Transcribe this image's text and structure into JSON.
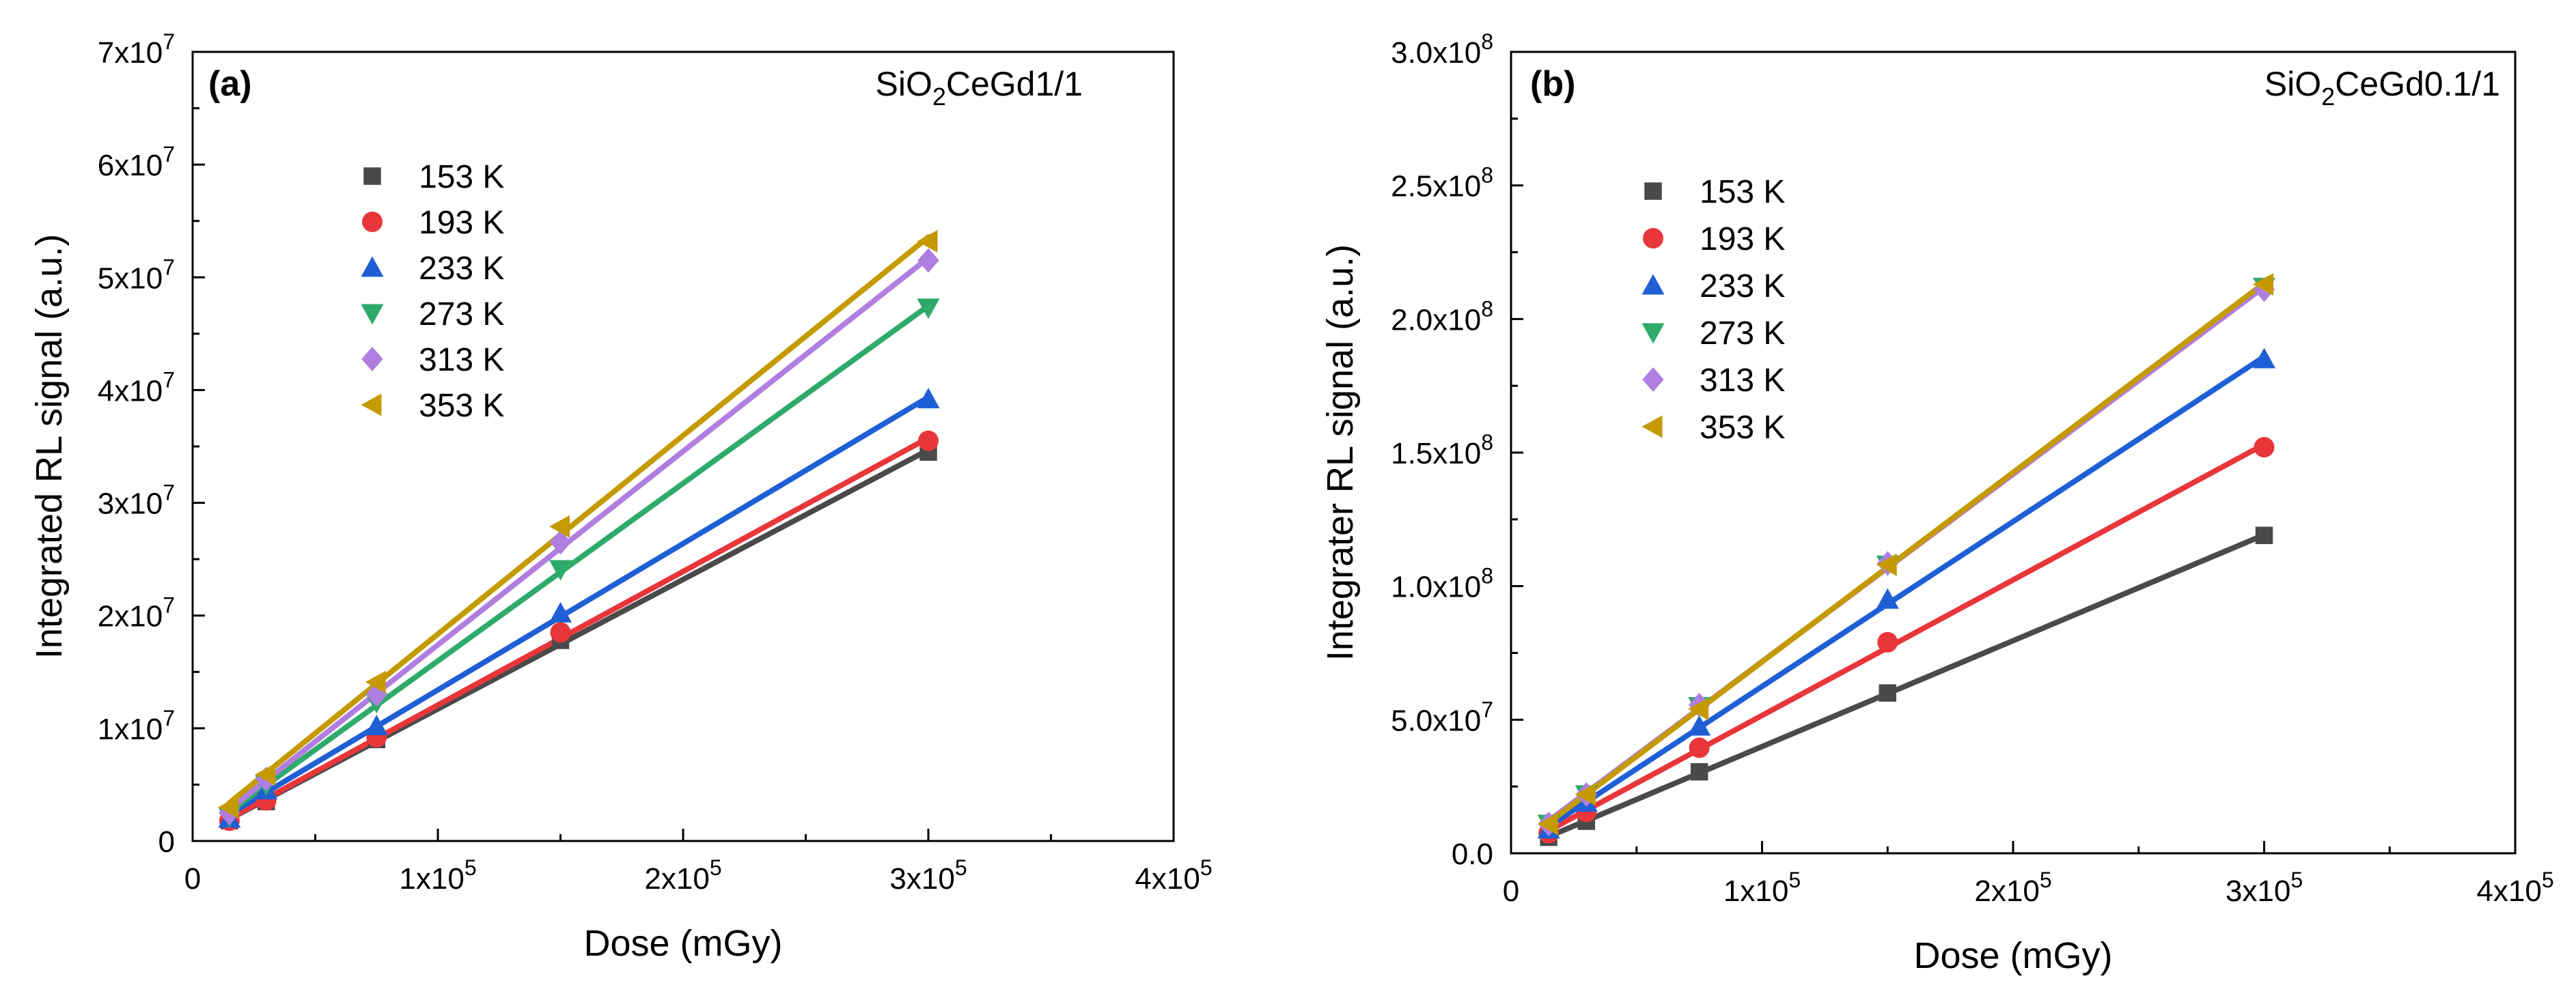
{
  "chart_data": [
    {
      "type": "scatter",
      "panel": "(a)",
      "sample": {
        "base": "SiO",
        "sub": "2",
        "rest": "CeGd1/1"
      },
      "xlabel": "Dose (mGy)",
      "ylabel": "Integrated RL signal (a.u.)",
      "xlim": [
        0,
        400000
      ],
      "ylim": [
        0,
        70000000
      ],
      "x_ticks": [
        {
          "value": 0,
          "text": "0",
          "exp": ""
        },
        {
          "value": 100000,
          "text": "1x10",
          "exp": "5"
        },
        {
          "value": 200000,
          "text": "2x10",
          "exp": "5"
        },
        {
          "value": 300000,
          "text": "3x10",
          "exp": "5"
        },
        {
          "value": 400000,
          "text": "4x10",
          "exp": "5"
        }
      ],
      "y_ticks": [
        {
          "value": 0,
          "text": "0",
          "exp": ""
        },
        {
          "value": 10000000,
          "text": "1x10",
          "exp": "7"
        },
        {
          "value": 20000000,
          "text": "2x10",
          "exp": "7"
        },
        {
          "value": 30000000,
          "text": "3x10",
          "exp": "7"
        },
        {
          "value": 40000000,
          "text": "4x10",
          "exp": "7"
        },
        {
          "value": 50000000,
          "text": "5x10",
          "exp": "7"
        },
        {
          "value": 60000000,
          "text": "6x10",
          "exp": "7"
        },
        {
          "value": 70000000,
          "text": "7x10",
          "exp": "7"
        }
      ],
      "x": [
        15000,
        30000,
        75000,
        150000,
        300000
      ],
      "legend_position": "upper-left",
      "series": [
        {
          "name": "153 K",
          "marker": "square",
          "color": "#4a4a4a",
          "values": [
            1800000,
            3500000,
            9000000,
            17800000,
            34500000
          ]
        },
        {
          "name": "193 K",
          "marker": "circle",
          "color": "#e8363a",
          "values": [
            1800000,
            3600000,
            9200000,
            18500000,
            35500000
          ]
        },
        {
          "name": "233 K",
          "marker": "triangle-up",
          "color": "#1f5fd6",
          "values": [
            2000000,
            4500000,
            10200000,
            20200000,
            39200000
          ]
        },
        {
          "name": "273 K",
          "marker": "triangle-down",
          "color": "#2eaa6a",
          "values": [
            2200000,
            5000000,
            12300000,
            24100000,
            47300000
          ]
        },
        {
          "name": "313 K",
          "marker": "diamond",
          "color": "#b07ee0",
          "values": [
            2500000,
            5500000,
            13000000,
            26500000,
            51500000
          ]
        },
        {
          "name": "353 K",
          "marker": "triangle-left",
          "color": "#c49a00",
          "values": [
            3000000,
            5900000,
            14100000,
            27900000,
            53200000
          ]
        }
      ]
    },
    {
      "type": "scatter",
      "panel": "(b)",
      "sample": {
        "base": "SiO",
        "sub": "2",
        "rest": "CeGd0.1/1"
      },
      "xlabel": "Dose (mGy)",
      "ylabel": "Integrater RL signal (a.u.)",
      "xlim": [
        0,
        400000
      ],
      "ylim": [
        0,
        300000000
      ],
      "x_ticks": [
        {
          "value": 0,
          "text": "0",
          "exp": ""
        },
        {
          "value": 100000,
          "text": "1x10",
          "exp": "5"
        },
        {
          "value": 200000,
          "text": "2x10",
          "exp": "5"
        },
        {
          "value": 300000,
          "text": "3x10",
          "exp": "5"
        },
        {
          "value": 400000,
          "text": "4x10",
          "exp": "5"
        }
      ],
      "y_ticks": [
        {
          "value": 0,
          "text": "0.0",
          "exp": ""
        },
        {
          "value": 50000000,
          "text": "5.0x10",
          "exp": "7"
        },
        {
          "value": 100000000,
          "text": "1.0x10",
          "exp": "8"
        },
        {
          "value": 150000000,
          "text": "1.5x10",
          "exp": "8"
        },
        {
          "value": 200000000,
          "text": "2.0x10",
          "exp": "8"
        },
        {
          "value": 250000000,
          "text": "2.5x10",
          "exp": "8"
        },
        {
          "value": 300000000,
          "text": "3.0x10",
          "exp": "8"
        }
      ],
      "x": [
        15000,
        30000,
        75000,
        150000,
        300000
      ],
      "legend_position": "upper-left",
      "series": [
        {
          "name": "153 K",
          "marker": "square",
          "color": "#4a4a4a",
          "values": [
            6000000,
            12000000,
            30500000,
            60000000,
            119000000
          ]
        },
        {
          "name": "193 K",
          "marker": "circle",
          "color": "#e8363a",
          "values": [
            7500000,
            15500000,
            39500000,
            79000000,
            152000000
          ]
        },
        {
          "name": "233 K",
          "marker": "triangle-up",
          "color": "#1f5fd6",
          "values": [
            9000000,
            19000000,
            47500000,
            95000000,
            185000000
          ]
        },
        {
          "name": "273 K",
          "marker": "triangle-down",
          "color": "#2eaa6a",
          "values": [
            11000000,
            22000000,
            55000000,
            108000000,
            212000000
          ]
        },
        {
          "name": "313 K",
          "marker": "diamond",
          "color": "#b07ee0",
          "values": [
            11000000,
            22000000,
            55500000,
            108500000,
            211000000
          ]
        },
        {
          "name": "353 K",
          "marker": "triangle-left",
          "color": "#c49a00",
          "values": [
            11000000,
            22000000,
            54000000,
            108000000,
            213000000
          ]
        }
      ]
    }
  ]
}
